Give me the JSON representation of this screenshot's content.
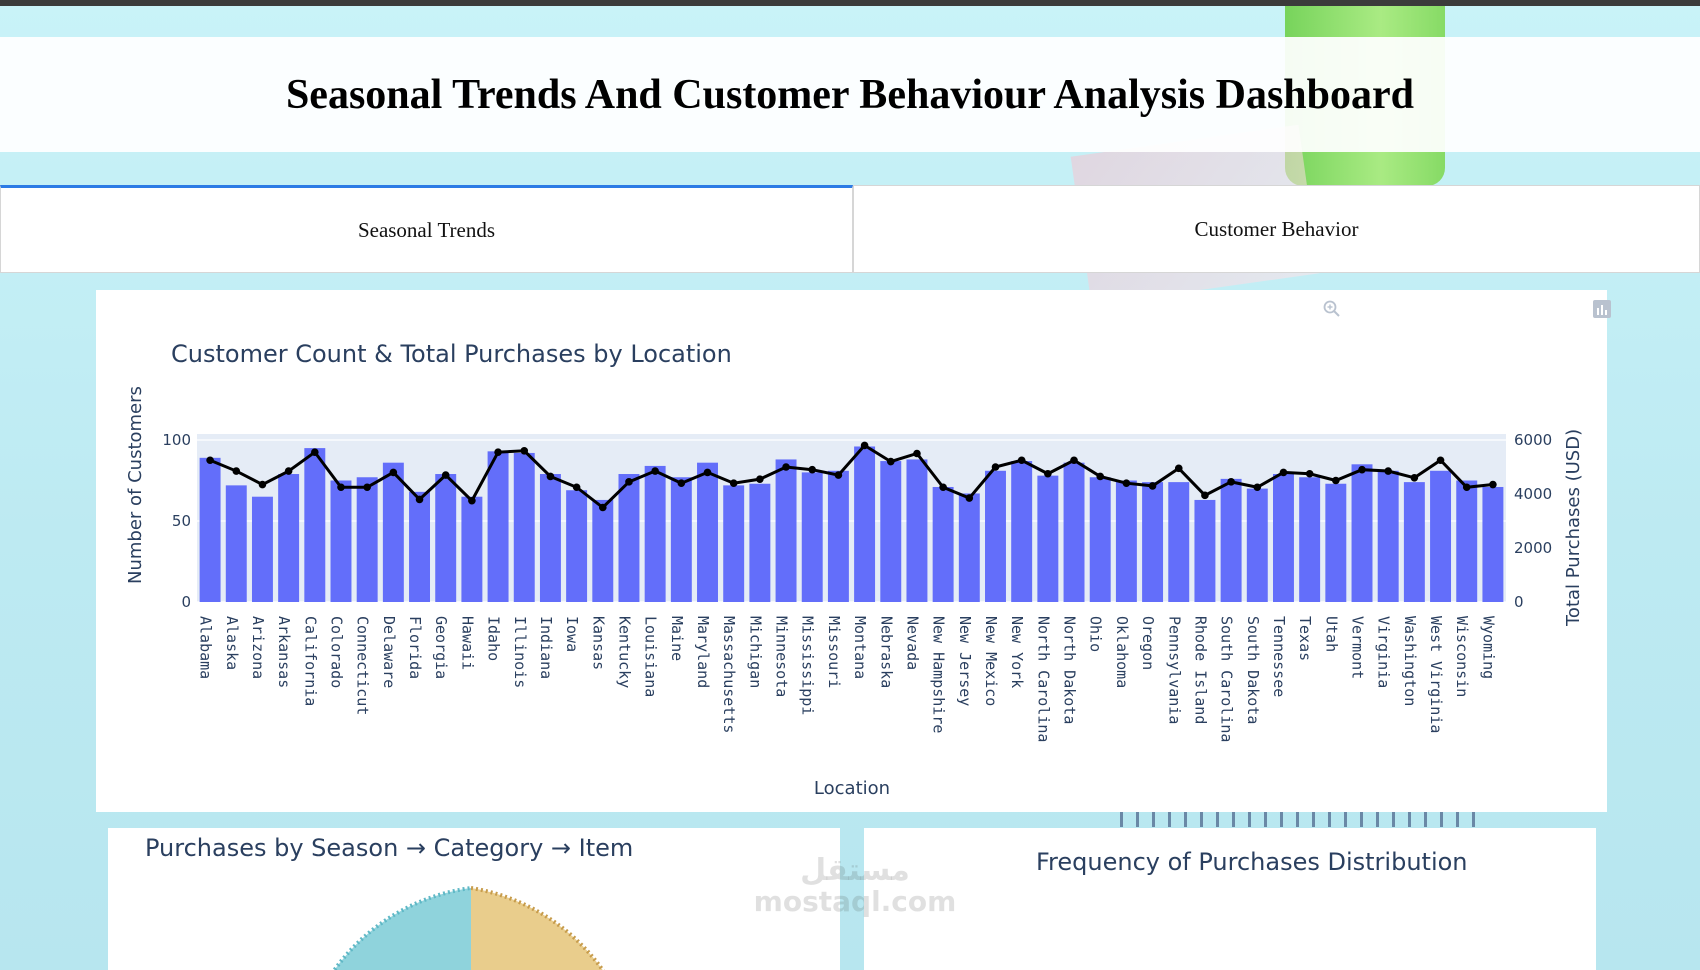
{
  "header": {
    "title": "Seasonal Trends And Customer Behaviour Analysis Dashboard"
  },
  "tabs": [
    {
      "label": "Seasonal Trends",
      "active": true
    },
    {
      "label": "Customer Behavior",
      "active": false
    }
  ],
  "colors": {
    "bar": "#636efa",
    "line": "#000000",
    "plot_bg": "#e5ecf6",
    "text": "#2a3f5f",
    "tab_accent": "#2c7be5"
  },
  "modebar": {
    "icons": [
      "zoom-icon",
      "plotly-logo-icon"
    ]
  },
  "chart_data": {
    "type": "bar",
    "title": "Customer Count & Total Purchases by Location",
    "xlabel": "Location",
    "ylabel": "Number of Customers",
    "y2label": "Total Purchases (USD)",
    "ylim": [
      0,
      100
    ],
    "y2lim": [
      0,
      6000
    ],
    "yticks": [
      0,
      50,
      100
    ],
    "y2ticks": [
      0,
      2000,
      4000,
      6000
    ],
    "categories": [
      "Alabama",
      "Alaska",
      "Arizona",
      "Arkansas",
      "California",
      "Colorado",
      "Connecticut",
      "Delaware",
      "Florida",
      "Georgia",
      "Hawaii",
      "Idaho",
      "Illinois",
      "Indiana",
      "Iowa",
      "Kansas",
      "Kentucky",
      "Louisiana",
      "Maine",
      "Maryland",
      "Massachusetts",
      "Michigan",
      "Minnesota",
      "Mississippi",
      "Missouri",
      "Montana",
      "Nebraska",
      "Nevada",
      "New Hampshire",
      "New Jersey",
      "New Mexico",
      "New York",
      "North Carolina",
      "North Dakota",
      "Ohio",
      "Oklahoma",
      "Oregon",
      "Pennsylvania",
      "Rhode Island",
      "South Carolina",
      "South Dakota",
      "Tennessee",
      "Texas",
      "Utah",
      "Vermont",
      "Virginia",
      "Washington",
      "West Virginia",
      "Wisconsin",
      "Wyoming"
    ],
    "series": [
      {
        "name": "Number of Customers",
        "type": "bar",
        "axis": "y",
        "values": [
          89,
          72,
          65,
          79,
          95,
          75,
          77,
          86,
          68,
          79,
          65,
          93,
          92,
          79,
          69,
          63,
          79,
          84,
          77,
          86,
          72,
          73,
          88,
          80,
          81,
          96,
          87,
          88,
          71,
          67,
          81,
          87,
          78,
          86,
          77,
          75,
          74,
          74,
          63,
          76,
          70,
          79,
          77,
          73,
          85,
          81,
          74,
          81,
          75,
          71
        ]
      },
      {
        "name": "Total Purchases (USD)",
        "type": "line",
        "axis": "y2",
        "values": [
          5250,
          4850,
          4350,
          4850,
          5550,
          4250,
          4250,
          4800,
          3800,
          4700,
          3750,
          5550,
          5600,
          4650,
          4250,
          3500,
          4450,
          4850,
          4400,
          4800,
          4400,
          4550,
          5000,
          4900,
          4700,
          5800,
          5200,
          5500,
          4250,
          3850,
          5000,
          5250,
          4750,
          5250,
          4650,
          4400,
          4300,
          4950,
          3950,
          4450,
          4250,
          4800,
          4750,
          4500,
          4900,
          4850,
          4600,
          5250,
          4250,
          4350
        ]
      }
    ]
  },
  "subcharts": {
    "season_title": "Purchases by Season → Category → Item",
    "frequency_title": "Frequency of Purchases Distribution"
  },
  "watermark": {
    "arabic": "مستقل",
    "latin": "mostaql.com"
  }
}
